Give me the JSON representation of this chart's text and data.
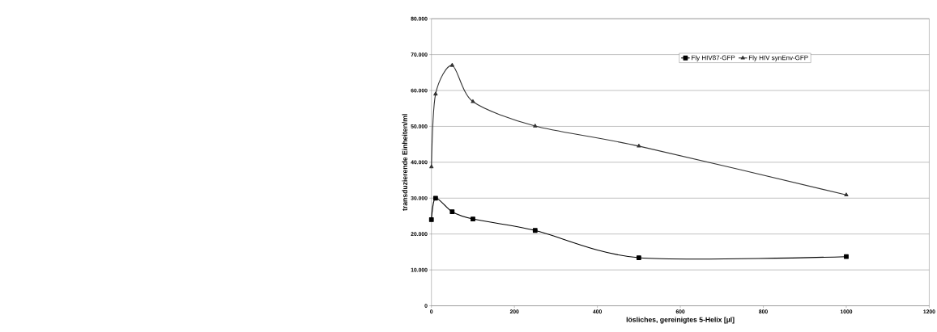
{
  "chart_data": {
    "type": "line",
    "xlabel": "lösliches, gereinigtes 5-Helix [µl]",
    "ylabel": "transduzierende Einheiten/ml",
    "x": [
      0,
      10,
      50,
      100,
      250,
      500,
      1000
    ],
    "series": [
      {
        "name": "Fly HIV87-GFP",
        "color": "#000000",
        "marker": "square",
        "values": [
          24000,
          30000,
          26200,
          24200,
          21000,
          13400,
          13700
        ]
      },
      {
        "name": "Fly HIV synEnv-GFP",
        "color": "#333333",
        "marker": "triangle",
        "values": [
          38700,
          59000,
          67000,
          56900,
          50100,
          44500,
          30900
        ]
      }
    ],
    "xlim": [
      0,
      1200
    ],
    "xticks": [
      0,
      200,
      400,
      600,
      800,
      1000,
      1200
    ],
    "ylim": [
      0,
      80000
    ],
    "yticks": [
      {
        "value": 0,
        "label": "0"
      },
      {
        "value": 10000,
        "label": "10.000"
      },
      {
        "value": 20000,
        "label": "20.000"
      },
      {
        "value": 30000,
        "label": "30.000"
      },
      {
        "value": 40000,
        "label": "40.000"
      },
      {
        "value": 50000,
        "label": "50.000"
      },
      {
        "value": 60000,
        "label": "60.000"
      },
      {
        "value": 70000,
        "label": "70.000"
      },
      {
        "value": 80000,
        "label": "80.000"
      }
    ],
    "grid": "y",
    "legend": "top",
    "line_style": "solid"
  }
}
